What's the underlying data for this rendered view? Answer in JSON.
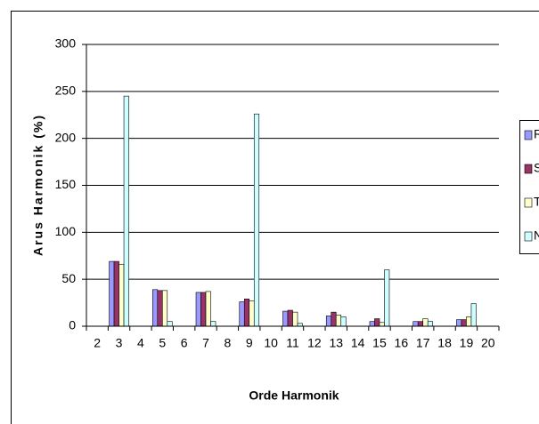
{
  "chart_data": {
    "type": "bar",
    "x_label": "Orde Harmonik",
    "y_label": "Arus Harmonik (%)",
    "categories": [
      "2",
      "3",
      "4",
      "5",
      "6",
      "7",
      "8",
      "9",
      "10",
      "11",
      "12",
      "13",
      "14",
      "15",
      "16",
      "17",
      "18",
      "19",
      "20"
    ],
    "series": [
      {
        "name": "R",
        "color": "#9999ff",
        "values": [
          null,
          69,
          null,
          39,
          null,
          36,
          null,
          26,
          null,
          16,
          null,
          11,
          null,
          5,
          null,
          5,
          null,
          7,
          null
        ]
      },
      {
        "name": "S",
        "color": "#993366",
        "values": [
          null,
          69,
          null,
          38,
          null,
          36,
          null,
          29,
          null,
          17,
          null,
          15,
          null,
          8,
          null,
          5,
          null,
          7,
          null
        ]
      },
      {
        "name": "T",
        "color": "#ffffcc",
        "values": [
          null,
          66,
          null,
          38,
          null,
          37,
          null,
          27,
          null,
          15,
          null,
          12,
          null,
          4,
          null,
          8,
          null,
          10,
          null
        ]
      },
      {
        "name": "N",
        "color": "#ccffff",
        "values": [
          null,
          245,
          null,
          5,
          null,
          5,
          null,
          226,
          null,
          3,
          null,
          10,
          null,
          60,
          null,
          5,
          null,
          24,
          null
        ]
      }
    ],
    "ylim": [
      0,
      300
    ],
    "yticks": [
      0,
      50,
      100,
      150,
      200,
      250,
      300
    ],
    "grid": true,
    "legend": "right"
  }
}
